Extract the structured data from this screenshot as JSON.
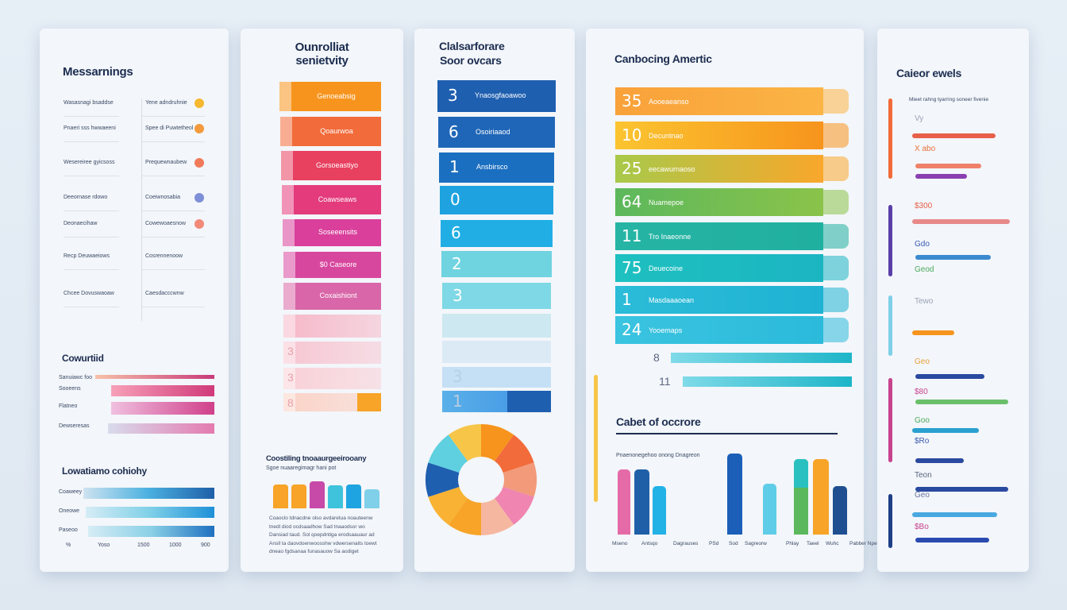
{
  "panel1": {
    "title": "Messarnings",
    "rows": [
      {
        "left": "Wasasnagi bsaddse",
        "right": "Yene adndruhnie",
        "dot": "#f5b82e"
      },
      {
        "left": "Pnaeri sss hwwaeeni",
        "right": "Spee di Puwtetheol",
        "dot": "#f39a3c"
      },
      {
        "left": "Wesereiree gyicsoss",
        "right": "Prequewnaubew",
        "dot": "#f07a5a"
      },
      {
        "left": "Deeornase rdowo",
        "right": "Coeiwnosabia",
        "dot": "#7d8fd6"
      },
      {
        "left": "Deonaecihaw",
        "right": "Cowewoaesnow",
        "dot": "#f28a7a"
      },
      {
        "left": "Recp Deuwaeiows",
        "right": "Cosrennenoow",
        "dot": ""
      },
      {
        "left": "Chcee Dovuswaoaw",
        "right": "Caesdacccwnw",
        "dot": ""
      }
    ],
    "section2_title": "Cowurtiid",
    "section2_labels": [
      "Sanuiawc foo",
      "Sooeens",
      "Flatneo",
      "Dewseresas"
    ],
    "section3_title": "Lowatiamo cohiohy",
    "section3_labels": [
      "Coaweey",
      "Oneowe",
      "Paseoo"
    ],
    "axis_ticks": [
      "%",
      "Yoso",
      "1500",
      "1000",
      "900"
    ]
  },
  "panel2": {
    "title_line1": "Ounrolliat",
    "title_line2": "senietvity",
    "steps": [
      {
        "label": "Genoeabsig",
        "color": "#f7941d"
      },
      {
        "label": "Qoaurwoa",
        "color": "#f26b3a"
      },
      {
        "label": "Gorsoeastiyo",
        "color": "#e8405f"
      },
      {
        "label": "Coawseaws",
        "color": "#e33b7c"
      },
      {
        "label": "Soseeensits",
        "color": "#d93f9b"
      },
      {
        "label": "$0 Caseore",
        "color": "#d8479e"
      },
      {
        "label": "Coxaishiont",
        "color": "#d966a8"
      },
      {
        "label": "",
        "color": "#f6b8c8"
      },
      {
        "label": "3",
        "color": "#f7c6d2"
      },
      {
        "label": "3",
        "color": "#f9d0d6"
      },
      {
        "label": "8",
        "color": "#fbd2c6"
      }
    ],
    "sub_title": "Coostiling tnoaaurgeeirooany",
    "sub_caption": "Sgoe nuaaregimagr hani pot",
    "bar_colors": [
      "#f7a428",
      "#f7a428",
      "#c84aa8",
      "#3fc3dd",
      "#1ea4e0",
      "#7fd0e8"
    ],
    "paragraph": "Coaoclo tdnacdne olso avdaretua noauteenw tnedl diod ocdsaadhow Sad tnaaodsor wo Dansiad taud. Sol qoepdntiga erodsaauaur ad Ansll ta daovdoenwoosshw vdwersenaits toewt dneao fgdsanaa funasauow Sa aodiget"
  },
  "panel3": {
    "title_line1": "Clalsarforare",
    "title_line2": "Soor ovcars",
    "items": [
      {
        "num": "3",
        "label": "Ynaosgfaoawoo",
        "color": "#1f5fb0"
      },
      {
        "num": "6",
        "label": "Osoiriaaod",
        "color": "#1f66b8"
      },
      {
        "num": "1",
        "label": "Ansbirsco",
        "color": "#1b6fc0"
      },
      {
        "num": "0",
        "label": "",
        "color": "#1ea3e0"
      },
      {
        "num": "6",
        "label": "",
        "color": "#20aee4"
      },
      {
        "num": "2",
        "label": "",
        "color": "#6fd3e0"
      },
      {
        "num": "3",
        "label": "",
        "color": "#7fd8e5"
      },
      {
        "num": "",
        "label": "",
        "color": "#cde8f0"
      },
      {
        "num": "",
        "label": "",
        "color": "#dbeaf5"
      },
      {
        "num": "3",
        "label": "",
        "color": "#c5e0f5"
      },
      {
        "num": "1",
        "label": "",
        "color": "#4a9ee6"
      }
    ],
    "donut_colors": [
      "#f7941d",
      "#f26b3a",
      "#f29a7a",
      "#ef85b0",
      "#f6b7a0",
      "#f7a428",
      "#f9b233",
      "#1f5fb0",
      "#5fd0e0",
      "#f7c548"
    ]
  },
  "panel4": {
    "title": "Canbocing Amertic",
    "rows": [
      {
        "num": "35",
        "label": "Aooeaeanso",
        "from": "#f9a13a",
        "to": "#fbb545"
      },
      {
        "num": "10",
        "label": "Decuntnao",
        "from": "#fbc430",
        "to": "#f7941d"
      },
      {
        "num": "25",
        "label": "eecawurnaoso",
        "from": "#a8c94a",
        "to": "#f9a72b"
      },
      {
        "num": "64",
        "label": "Nuamepoe",
        "from": "#5cb85c",
        "to": "#8bc34a"
      },
      {
        "num": "11",
        "label": "Tro Inaeonne",
        "from": "#26b5a5",
        "to": "#20b0a0"
      },
      {
        "num": "75",
        "label": "Deuecoine",
        "from": "#1ec0c0",
        "to": "#1bb5c2"
      },
      {
        "num": "1",
        "label": "Masdaaaoean",
        "from": "#2bbcd8",
        "to": "#1fb2d2"
      },
      {
        "num": "24",
        "label": "Yooemaps",
        "from": "#3ac4e0",
        "to": "#2bbadb"
      }
    ],
    "thin_rows": [
      {
        "num": "8"
      },
      {
        "num": "11"
      }
    ],
    "chart_title": "Cabet of occrore",
    "chart_caption": "Pnaenonegehoo onong Dnagreon",
    "bars": [
      {
        "value": 80,
        "color": "#e46aa8"
      },
      {
        "value": 80,
        "color": "#1f5fa8"
      },
      {
        "value": 60,
        "color": "#22b2e6"
      },
      {
        "value": 100,
        "color": "#1b5fb8"
      },
      {
        "value": 63,
        "color": "#5fcde8"
      },
      {
        "value": 93,
        "color": "#5cb85c"
      },
      {
        "value": 93,
        "color": "#f7a428"
      },
      {
        "value": 60,
        "color": "#1f4f90"
      }
    ],
    "bar_labels": [
      "Mseno",
      "Antsqo",
      "Dagrauses",
      "PSd",
      "Sod",
      "Sagreorw",
      "Phlay",
      "Taeel",
      "Wuhc",
      "Pabber Npe"
    ]
  },
  "panel5": {
    "title": "Caieor ewels",
    "caption": "Mieet rahng tyarring soneer fivenie",
    "rails": [
      "#f26b3a",
      "#5a3fa8",
      "#7fd0e8",
      "#c8438e",
      "#1f3f88"
    ],
    "rows": [
      {
        "label": "Vy",
        "label_color": "#9aa3b5",
        "bar": "#e8604a",
        "fill": 0.7
      },
      {
        "label": "X abo",
        "label_color": "#e8703a",
        "bar": "#f0826a",
        "fill": 0.55
      },
      {
        "label": "",
        "label_color": "",
        "bar": "#8a3fb0",
        "fill": 0.43
      },
      {
        "label": "$300",
        "label_color": "#e8604a",
        "bar": "#e88a8a",
        "fill": 0.82
      },
      {
        "label": "Gdo",
        "label_color": "#3a5ab0",
        "bar": "#3a8ad0",
        "fill": 0.63
      },
      {
        "label": "Geod",
        "label_color": "#4aaa5a",
        "bar": "",
        "fill": 0
      },
      {
        "label": "Tewo",
        "label_color": "#9aa3b5",
        "bar": "#f7941d",
        "fill": 0.35
      },
      {
        "label": "Geo",
        "label_color": "#e8a03a",
        "bar": "#2a4aa0",
        "fill": 0.58
      },
      {
        "label": "$80",
        "label_color": "#c8438e",
        "bar": "#6ac06a",
        "fill": 0.78
      },
      {
        "label": "Goo",
        "label_color": "#4aaa5a",
        "bar": "#2aa0d0",
        "fill": 0.56
      },
      {
        "label": "$Ro",
        "label_color": "#3a5ab0",
        "bar": "#2a4aa0",
        "fill": 0.41
      },
      {
        "label": "Teon",
        "label_color": "#5a6580",
        "bar": "#2a4aa0",
        "fill": 0.78
      },
      {
        "label": "Geo",
        "label_color": "#6a75a0",
        "bar": "#4aa8e0",
        "fill": 0.71
      },
      {
        "label": "$Bo",
        "label_color": "#c8438e",
        "bar": "#2a4ab0",
        "fill": 0.62
      }
    ]
  }
}
